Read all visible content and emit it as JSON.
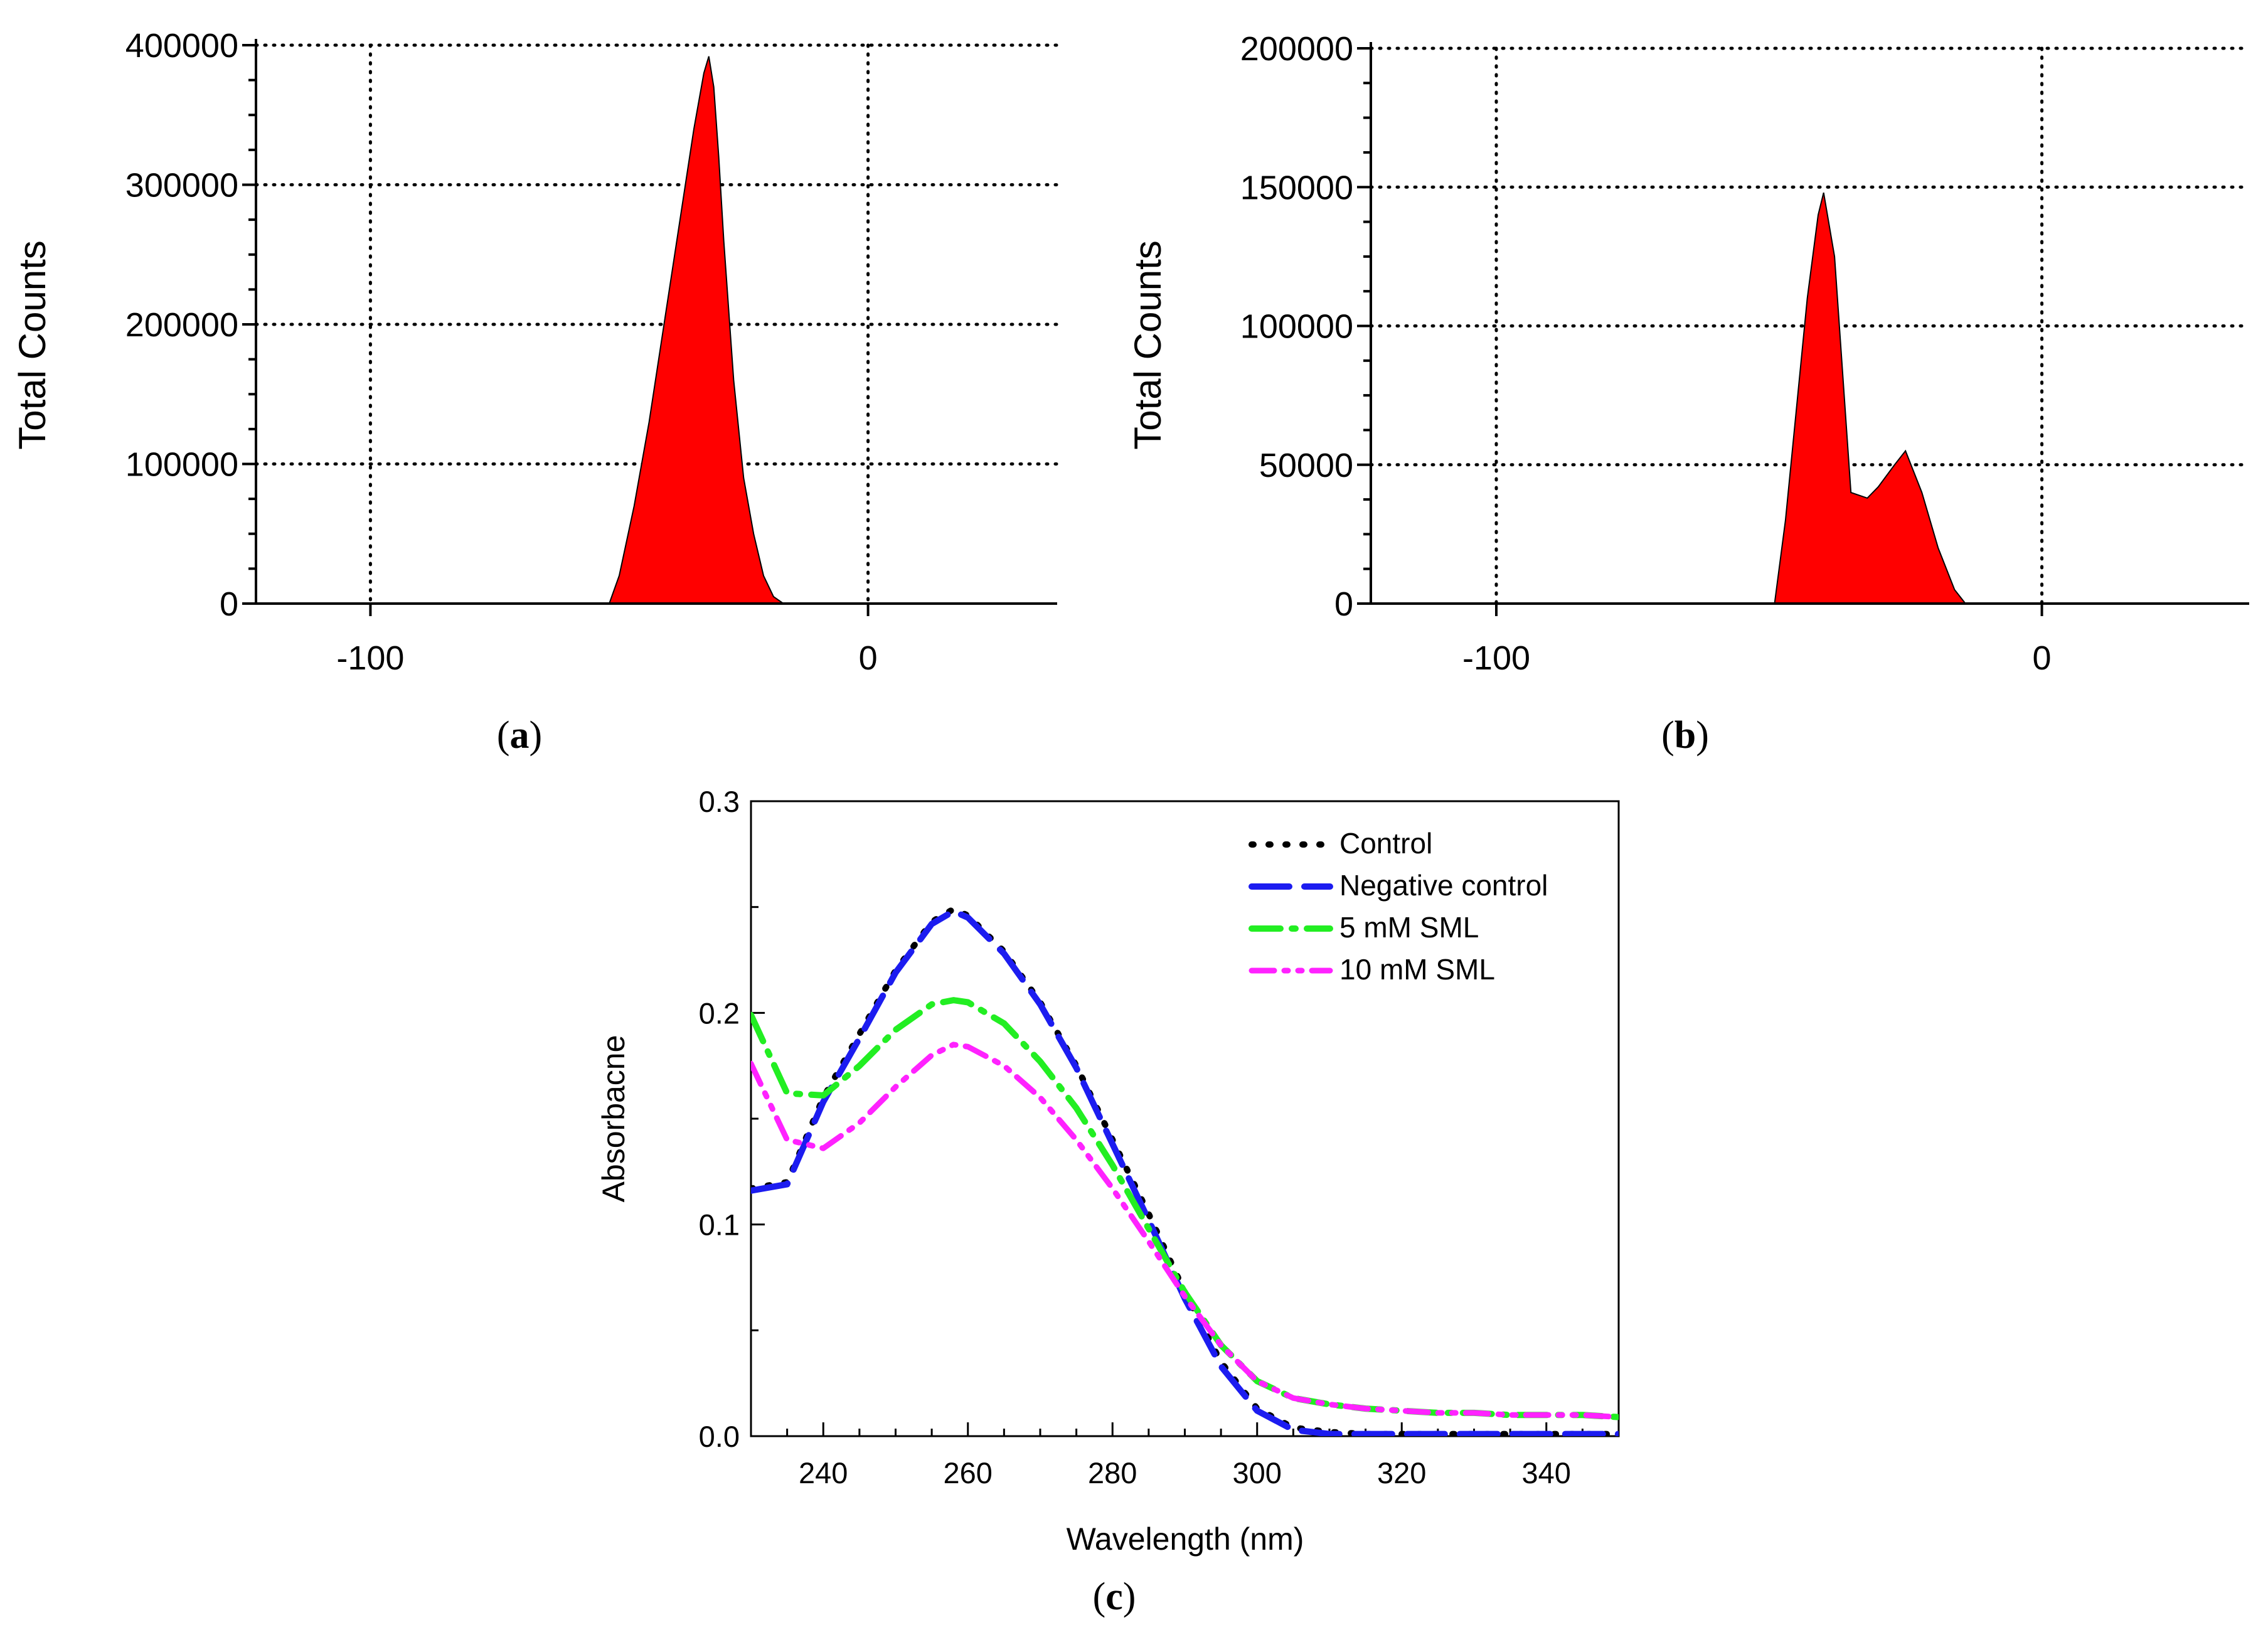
{
  "figure": {
    "captions": {
      "a": "a",
      "b": "b",
      "c": "c"
    }
  },
  "chart_data": [
    {
      "id": "a",
      "type": "area",
      "title": "",
      "xlabel": "",
      "ylabel": "Total Counts",
      "xlim": [
        -123,
        38
      ],
      "ylim": [
        0,
        400000
      ],
      "xticks": [
        -100,
        0
      ],
      "xtick_labels": [
        "-100",
        "0"
      ],
      "yticks": [
        0,
        100000,
        200000,
        300000,
        400000
      ],
      "ytick_labels": [
        "0",
        "100000",
        "200000",
        "300000",
        "400000"
      ],
      "grid": true,
      "fill_color": "#ff0000",
      "x": [
        -123,
        -52,
        -50,
        -47,
        -44,
        -41,
        -38,
        -35,
        -33,
        -32,
        -31,
        -30,
        -29,
        -27,
        -25,
        -23,
        -21,
        -19,
        -17,
        -123
      ],
      "y": [
        0,
        0,
        20000,
        70000,
        130000,
        200000,
        270000,
        340000,
        380000,
        392000,
        370000,
        320000,
        260000,
        160000,
        90000,
        50000,
        20000,
        5000,
        0,
        0
      ]
    },
    {
      "id": "b",
      "type": "area",
      "title": "",
      "xlabel": "",
      "ylabel": "Total Counts",
      "xlim": [
        -123,
        38
      ],
      "ylim": [
        0,
        200000
      ],
      "xticks": [
        -100,
        0
      ],
      "xtick_labels": [
        "-100",
        "0"
      ],
      "yticks": [
        0,
        50000,
        100000,
        150000,
        200000
      ],
      "ytick_labels": [
        "0",
        "50000",
        "100000",
        "150000",
        "200000"
      ],
      "grid": true,
      "fill_color": "#ff0000",
      "x": [
        -123,
        -49,
        -47,
        -45,
        -43,
        -41,
        -40,
        -38,
        -35,
        -32,
        -30,
        -27,
        -25,
        -22,
        -19,
        -16,
        -14,
        -123
      ],
      "y": [
        0,
        0,
        30000,
        70000,
        110000,
        140000,
        148000,
        125000,
        40000,
        38000,
        42000,
        50000,
        55000,
        40000,
        20000,
        5000,
        0,
        0
      ]
    },
    {
      "id": "c",
      "type": "line",
      "title": "",
      "xlabel": "Wavelength (nm)",
      "ylabel": "Absorbacne",
      "xlim": [
        230,
        350
      ],
      "ylim": [
        0.0,
        0.3
      ],
      "xticks": [
        240,
        260,
        280,
        300,
        320,
        340
      ],
      "xtick_labels": [
        "240",
        "260",
        "280",
        "300",
        "320",
        "340"
      ],
      "yticks": [
        0.0,
        0.1,
        0.2,
        0.3
      ],
      "ytick_labels": [
        "0.0",
        "0.1",
        "0.2",
        "0.3"
      ],
      "grid": false,
      "legend_position": "top-right",
      "x": [
        230,
        235,
        240,
        245,
        250,
        255,
        258,
        260,
        265,
        270,
        275,
        280,
        285,
        290,
        295,
        300,
        305,
        310,
        315,
        320,
        325,
        330,
        335,
        340,
        345,
        350
      ],
      "series": [
        {
          "name": "Control",
          "color": "#000000",
          "dash": "dot",
          "values": [
            0.117,
            0.12,
            0.16,
            0.19,
            0.22,
            0.243,
            0.249,
            0.246,
            0.229,
            0.205,
            0.175,
            0.14,
            0.105,
            0.068,
            0.035,
            0.013,
            0.004,
            0.002,
            0.001,
            0.001,
            0.001,
            0.001,
            0.001,
            0.001,
            0.001,
            0.001
          ]
        },
        {
          "name": "Negative control",
          "color": "#1c1cf0",
          "dash": "dash",
          "values": [
            0.116,
            0.119,
            0.158,
            0.188,
            0.219,
            0.242,
            0.248,
            0.245,
            0.228,
            0.204,
            0.174,
            0.138,
            0.102,
            0.065,
            0.033,
            0.012,
            0.003,
            0.001,
            0.001,
            0.001,
            0.001,
            0.001,
            0.001,
            0.001,
            0.001,
            0.001
          ]
        },
        {
          "name": "5 mM SML",
          "color": "#22ee22",
          "dash": "dashdot",
          "values": [
            0.199,
            0.162,
            0.161,
            0.175,
            0.192,
            0.204,
            0.206,
            0.205,
            0.195,
            0.177,
            0.155,
            0.128,
            0.098,
            0.068,
            0.043,
            0.026,
            0.018,
            0.015,
            0.013,
            0.012,
            0.011,
            0.011,
            0.01,
            0.01,
            0.01,
            0.009
          ]
        },
        {
          "name": "10 mM SML",
          "color": "#ff22ff",
          "dash": "dashdotdot",
          "values": [
            0.176,
            0.14,
            0.136,
            0.148,
            0.165,
            0.18,
            0.185,
            0.184,
            0.175,
            0.16,
            0.14,
            0.117,
            0.092,
            0.066,
            0.043,
            0.026,
            0.018,
            0.015,
            0.013,
            0.012,
            0.011,
            0.011,
            0.01,
            0.01,
            0.01,
            0.009
          ]
        }
      ]
    }
  ]
}
